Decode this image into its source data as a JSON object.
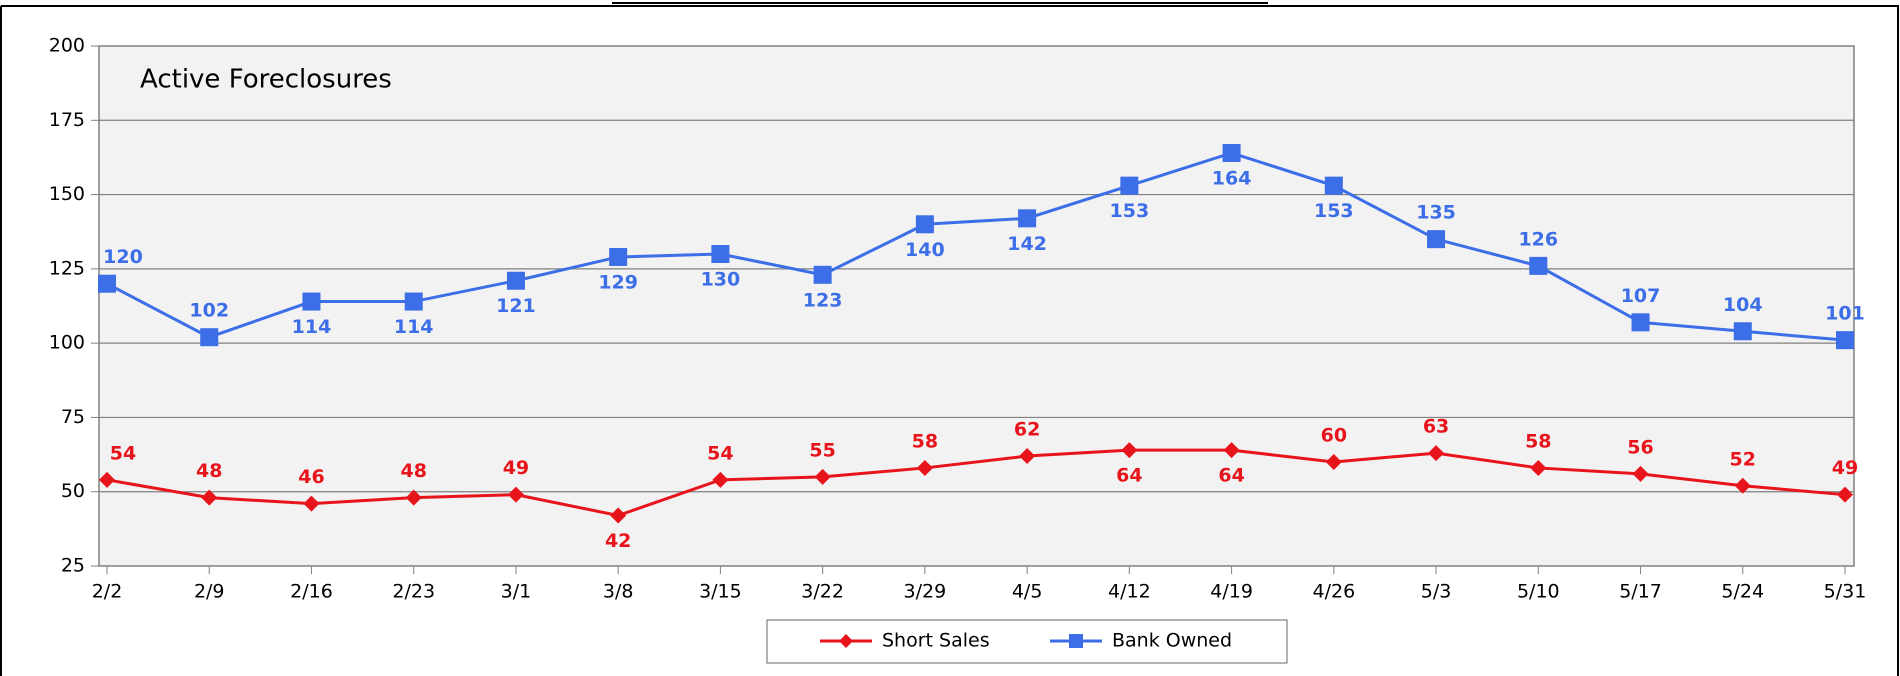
{
  "chart_data": {
    "type": "line",
    "title": "Active Foreclosures",
    "categories": [
      "2/2",
      "2/9",
      "2/16",
      "2/23",
      "3/1",
      "3/8",
      "3/15",
      "3/22",
      "3/29",
      "4/5",
      "4/12",
      "4/19",
      "4/26",
      "5/3",
      "5/10",
      "5/17",
      "5/24",
      "5/31"
    ],
    "series": [
      {
        "name": "Short Sales",
        "color": "#e8141b",
        "values": [
          54,
          48,
          46,
          48,
          49,
          42,
          54,
          55,
          58,
          62,
          64,
          64,
          60,
          63,
          58,
          56,
          52,
          49
        ]
      },
      {
        "name": "Bank Owned",
        "color": "#3c6ee8",
        "values": [
          120,
          102,
          114,
          114,
          121,
          129,
          130,
          123,
          140,
          142,
          153,
          164,
          153,
          135,
          126,
          107,
          104,
          101
        ]
      }
    ],
    "ylim": [
      25,
      200
    ],
    "yticks": [
      25,
      50,
      75,
      100,
      125,
      150,
      175,
      200
    ],
    "grid": true,
    "legend": "bottom"
  }
}
